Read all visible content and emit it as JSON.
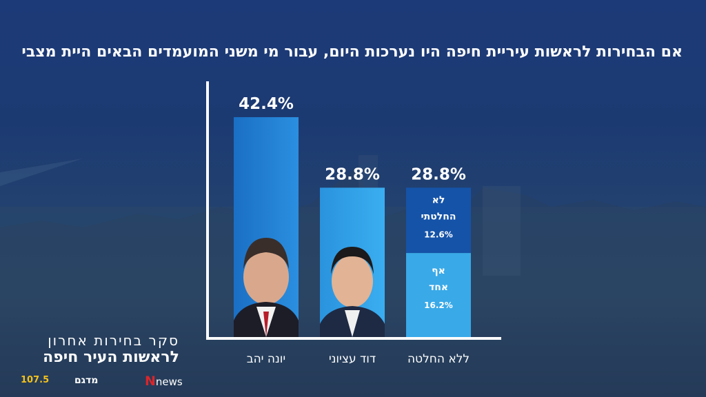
{
  "title": "אם הבחירות לראשות עיריית חיפה היו נערכות היום, עבור מי משני המועמדים הבאים היית מצביע?",
  "colors": {
    "bar_main": "#1f7fd3",
    "bar_light": "#2ea0e6",
    "seg_dark": "#1553a8",
    "seg_light": "#39a9e8",
    "axis": "#ffffff"
  },
  "chart_data": {
    "type": "bar",
    "categories": [
      "יונה יהב",
      "דוד עציוני",
      "ללא החלטה"
    ],
    "values": [
      42.4,
      28.8,
      28.8
    ],
    "value_labels": [
      "42.4%",
      "28.8%",
      "28.8%"
    ],
    "ylim": [
      0,
      45
    ],
    "stacked_segments": [
      {
        "label": "לא החלטתי",
        "value": 12.6,
        "value_label": "12.6%"
      },
      {
        "label": "אף אחד",
        "value": 16.2,
        "value_label": "16.2%"
      }
    ],
    "xlabel": "",
    "ylabel": "",
    "grid": false
  },
  "branding": {
    "line1": "סקר בחירות אחרון",
    "line2": "לראשות העיר חיפה",
    "logo_news": "news",
    "logo_dg": "מדגם",
    "logo_radio_freq": "107.5"
  },
  "icons": [
    "candidate-photo-icon",
    "candidate-photo-icon"
  ]
}
